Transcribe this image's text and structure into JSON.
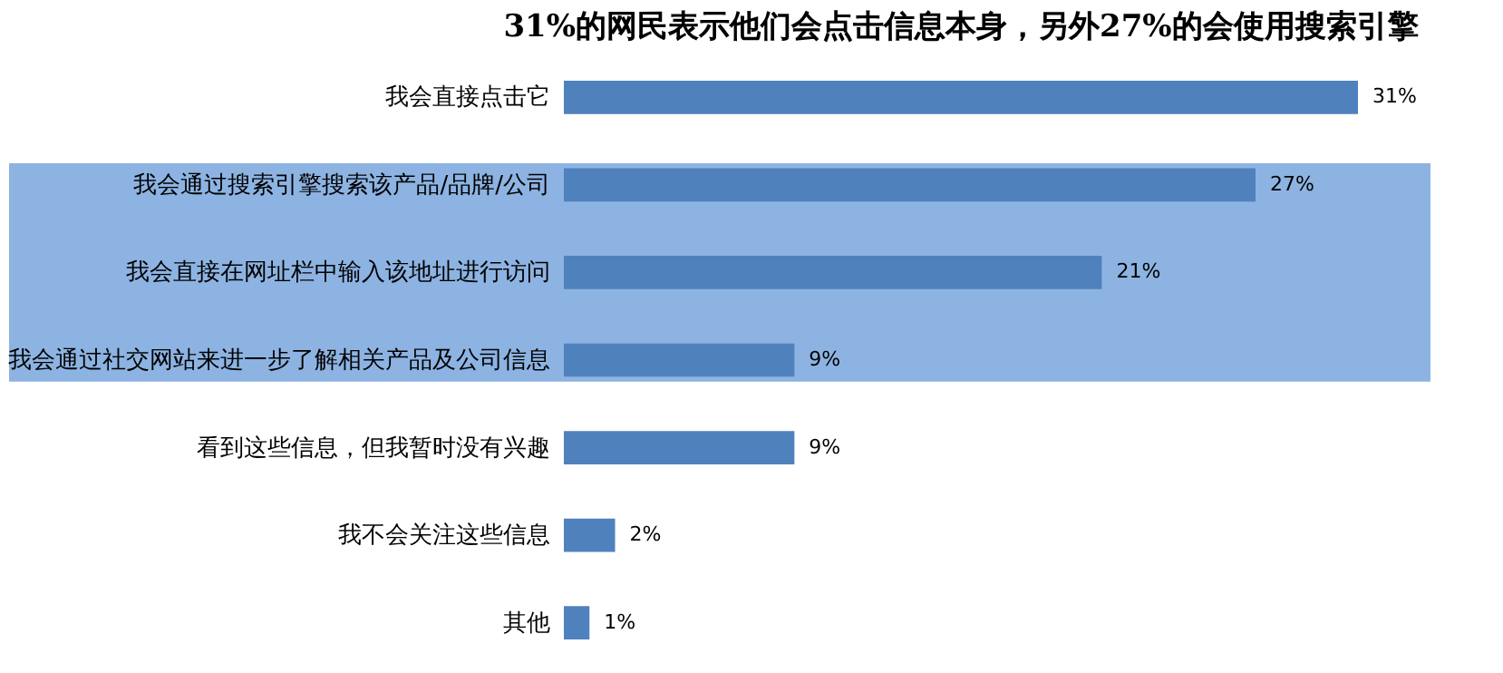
{
  "chart_data": {
    "type": "bar",
    "orientation": "horizontal",
    "title": "31%的网民表示他们会点击信息本身，另外27%的会使用搜索引擎",
    "categories": [
      "我会直接点击它",
      "我会通过搜索引擎搜索该产品/品牌/公司",
      "我会直接在网址栏中输入该地址进行访问",
      "我会通过社交网站来进一步了解相关产品及公司信息",
      "看到这些信息，但我暂时没有兴趣",
      "我不会关注这些信息",
      "其他"
    ],
    "values": [
      31,
      27,
      21,
      9,
      9,
      2,
      1
    ],
    "value_labels": [
      "31%",
      "27%",
      "21%",
      "9%",
      "9%",
      "2%",
      "1%"
    ],
    "color": "#4f81bd",
    "bands": [
      {
        "axis": "y",
        "from": "我会通过搜索引擎搜索该产品/品牌/公司",
        "to": "我会通过社交网站来进一步了解相关产品及公司信息",
        "color": "#8db3e2"
      }
    ]
  }
}
